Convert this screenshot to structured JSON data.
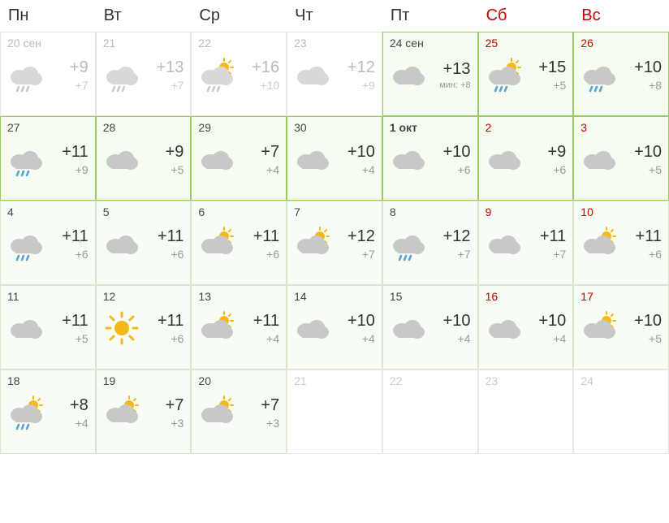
{
  "headers": [
    {
      "label": "Пн",
      "weekend": false
    },
    {
      "label": "Вт",
      "weekend": false
    },
    {
      "label": "Ср",
      "weekend": false
    },
    {
      "label": "Чт",
      "weekend": false
    },
    {
      "label": "Пт",
      "weekend": false
    },
    {
      "label": "Сб",
      "weekend": true
    },
    {
      "label": "Вс",
      "weekend": true
    }
  ],
  "days": [
    {
      "date": "20 сен",
      "icon": "cloud-rain",
      "high": "+9",
      "low": "+7",
      "style": "faded",
      "weekend": false,
      "faded_icon": true
    },
    {
      "date": "21",
      "icon": "cloud-rain",
      "high": "+13",
      "low": "+7",
      "style": "faded",
      "weekend": false,
      "faded_icon": true
    },
    {
      "date": "22",
      "icon": "cloud-sun-rain",
      "high": "+16",
      "low": "+10",
      "style": "faded",
      "weekend": false,
      "faded_icon": true
    },
    {
      "date": "23",
      "icon": "cloud",
      "high": "+12",
      "low": "+9",
      "style": "faded",
      "weekend": false,
      "faded_icon": true
    },
    {
      "date": "24 сен",
      "icon": "cloud",
      "high": "+13",
      "low": "+8",
      "min": "мин:",
      "style": "active",
      "weekend": false
    },
    {
      "date": "25",
      "icon": "cloud-sun-rain",
      "high": "+15",
      "low": "+5",
      "style": "active",
      "weekend": true
    },
    {
      "date": "26",
      "icon": "cloud-rain",
      "high": "+10",
      "low": "+8",
      "style": "active",
      "weekend": true
    },
    {
      "date": "27",
      "icon": "cloud-rain",
      "high": "+11",
      "low": "+9",
      "style": "active",
      "weekend": false
    },
    {
      "date": "28",
      "icon": "cloud",
      "high": "+9",
      "low": "+5",
      "style": "active",
      "weekend": false
    },
    {
      "date": "29",
      "icon": "cloud",
      "high": "+7",
      "low": "+4",
      "style": "active",
      "weekend": false
    },
    {
      "date": "30",
      "icon": "cloud",
      "high": "+10",
      "low": "+4",
      "style": "active",
      "weekend": false
    },
    {
      "date": "1 окт",
      "icon": "cloud",
      "high": "+10",
      "low": "+6",
      "style": "active",
      "weekend": false,
      "bold": true
    },
    {
      "date": "2",
      "icon": "cloud",
      "high": "+9",
      "low": "+6",
      "style": "active",
      "weekend": true
    },
    {
      "date": "3",
      "icon": "cloud",
      "high": "+10",
      "low": "+5",
      "style": "active",
      "weekend": true
    },
    {
      "date": "4",
      "icon": "cloud-rain",
      "high": "+11",
      "low": "+6",
      "style": "forecast",
      "weekend": false
    },
    {
      "date": "5",
      "icon": "cloud",
      "high": "+11",
      "low": "+6",
      "style": "forecast",
      "weekend": false
    },
    {
      "date": "6",
      "icon": "cloud-sun",
      "high": "+11",
      "low": "+6",
      "style": "forecast",
      "weekend": false
    },
    {
      "date": "7",
      "icon": "cloud-sun",
      "high": "+12",
      "low": "+7",
      "style": "forecast",
      "weekend": false
    },
    {
      "date": "8",
      "icon": "cloud-rain",
      "high": "+12",
      "low": "+7",
      "style": "forecast",
      "weekend": false
    },
    {
      "date": "9",
      "icon": "cloud",
      "high": "+11",
      "low": "+7",
      "style": "forecast",
      "weekend": true
    },
    {
      "date": "10",
      "icon": "cloud-sun",
      "high": "+11",
      "low": "+6",
      "style": "forecast",
      "weekend": true
    },
    {
      "date": "11",
      "icon": "cloud",
      "high": "+11",
      "low": "+5",
      "style": "forecast",
      "weekend": false
    },
    {
      "date": "12",
      "icon": "sun",
      "high": "+11",
      "low": "+6",
      "style": "forecast",
      "weekend": false
    },
    {
      "date": "13",
      "icon": "cloud-sun",
      "high": "+11",
      "low": "+4",
      "style": "forecast",
      "weekend": false
    },
    {
      "date": "14",
      "icon": "cloud",
      "high": "+10",
      "low": "+4",
      "style": "forecast",
      "weekend": false
    },
    {
      "date": "15",
      "icon": "cloud",
      "high": "+10",
      "low": "+4",
      "style": "forecast",
      "weekend": false
    },
    {
      "date": "16",
      "icon": "cloud",
      "high": "+10",
      "low": "+4",
      "style": "forecast",
      "weekend": true
    },
    {
      "date": "17",
      "icon": "cloud-sun",
      "high": "+10",
      "low": "+5",
      "style": "forecast",
      "weekend": true
    },
    {
      "date": "18",
      "icon": "cloud-sun-rain",
      "high": "+8",
      "low": "+4",
      "style": "forecast",
      "weekend": false
    },
    {
      "date": "19",
      "icon": "cloud-sun",
      "high": "+7",
      "low": "+3",
      "style": "forecast",
      "weekend": false
    },
    {
      "date": "20",
      "icon": "cloud-sun",
      "high": "+7",
      "low": "+3",
      "style": "forecast",
      "weekend": false
    },
    {
      "date": "21",
      "style": "empty",
      "weekend": false
    },
    {
      "date": "22",
      "style": "empty",
      "weekend": false
    },
    {
      "date": "23",
      "style": "empty",
      "weekend": true
    },
    {
      "date": "24",
      "style": "empty",
      "weekend": true
    }
  ],
  "colors": {
    "cloud": "#c8c8c8",
    "cloud_faded": "#d8d8d8",
    "rain": "#5aa0d8",
    "rain_faded": "#c8c8c8",
    "sun": "#f5b817"
  }
}
